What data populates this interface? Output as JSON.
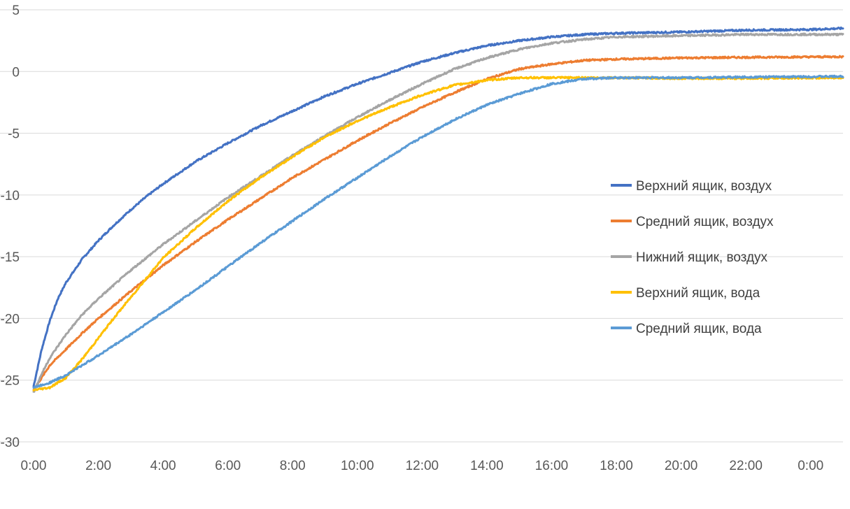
{
  "chart_data": {
    "type": "line",
    "title": "",
    "xlabel": "",
    "ylabel": "",
    "xlim": [
      0,
      25
    ],
    "ylim": [
      -30,
      5
    ],
    "y_ticks": [
      5,
      0,
      -5,
      -10,
      -15,
      -20,
      -25,
      -30
    ],
    "x_ticks": [
      {
        "v": 0,
        "label": "0:00"
      },
      {
        "v": 2,
        "label": "2:00"
      },
      {
        "v": 4,
        "label": "4:00"
      },
      {
        "v": 6,
        "label": "6:00"
      },
      {
        "v": 8,
        "label": "8:00"
      },
      {
        "v": 10,
        "label": "10:00"
      },
      {
        "v": 12,
        "label": "12:00"
      },
      {
        "v": 14,
        "label": "14:00"
      },
      {
        "v": 16,
        "label": "16:00"
      },
      {
        "v": 18,
        "label": "18:00"
      },
      {
        "v": 20,
        "label": "20:00"
      },
      {
        "v": 22,
        "label": "22:00"
      },
      {
        "v": 24,
        "label": "0:00"
      }
    ],
    "grid": "horizontal",
    "legend_position": "right",
    "series": [
      {
        "name": "Верхний ящик, воздух",
        "color": "#4472c4",
        "points": [
          [
            0,
            -25.5
          ],
          [
            0.25,
            -22.5
          ],
          [
            0.5,
            -20.2
          ],
          [
            0.75,
            -18.4
          ],
          [
            1,
            -17.1
          ],
          [
            1.5,
            -15.2
          ],
          [
            2,
            -13.7
          ],
          [
            2.5,
            -12.4
          ],
          [
            3,
            -11.2
          ],
          [
            3.5,
            -10.1
          ],
          [
            4,
            -9.1
          ],
          [
            5,
            -7.3
          ],
          [
            6,
            -5.8
          ],
          [
            7,
            -4.4
          ],
          [
            8,
            -3.2
          ],
          [
            9,
            -2.0
          ],
          [
            10,
            -1.0
          ],
          [
            11,
            -0.1
          ],
          [
            12,
            0.8
          ],
          [
            13,
            1.5
          ],
          [
            14,
            2.1
          ],
          [
            15,
            2.5
          ],
          [
            16,
            2.8
          ],
          [
            17,
            3.0
          ],
          [
            18,
            3.1
          ],
          [
            20,
            3.2
          ],
          [
            22,
            3.35
          ],
          [
            24,
            3.4
          ],
          [
            25,
            3.5
          ]
        ]
      },
      {
        "name": "Средний ящик, воздух",
        "color": "#ed7d31",
        "points": [
          [
            0,
            -25.8
          ],
          [
            0.5,
            -23.8
          ],
          [
            1,
            -22.5
          ],
          [
            1.5,
            -21.2
          ],
          [
            2,
            -20.0
          ],
          [
            3,
            -17.8
          ],
          [
            4,
            -15.7
          ],
          [
            5,
            -13.8
          ],
          [
            6,
            -12.0
          ],
          [
            7,
            -10.3
          ],
          [
            8,
            -8.6
          ],
          [
            9,
            -7.1
          ],
          [
            10,
            -5.6
          ],
          [
            11,
            -4.2
          ],
          [
            12,
            -2.9
          ],
          [
            13,
            -1.7
          ],
          [
            14,
            -0.6
          ],
          [
            15,
            0.2
          ],
          [
            16,
            0.6
          ],
          [
            17,
            0.9
          ],
          [
            18,
            1.0
          ],
          [
            20,
            1.1
          ],
          [
            22,
            1.15
          ],
          [
            25,
            1.2
          ]
        ]
      },
      {
        "name": "Нижний ящик, воздух",
        "color": "#a5a5a5",
        "points": [
          [
            0,
            -26.0
          ],
          [
            0.25,
            -24.5
          ],
          [
            0.5,
            -23.2
          ],
          [
            1,
            -21.3
          ],
          [
            1.5,
            -19.7
          ],
          [
            2,
            -18.4
          ],
          [
            3,
            -16.1
          ],
          [
            4,
            -14.0
          ],
          [
            5,
            -12.1
          ],
          [
            6,
            -10.2
          ],
          [
            7,
            -8.5
          ],
          [
            8,
            -6.8
          ],
          [
            9,
            -5.2
          ],
          [
            10,
            -3.7
          ],
          [
            11,
            -2.3
          ],
          [
            12,
            -1.0
          ],
          [
            13,
            0.2
          ],
          [
            14,
            1.1
          ],
          [
            15,
            1.8
          ],
          [
            16,
            2.3
          ],
          [
            17,
            2.6
          ],
          [
            18,
            2.8
          ],
          [
            20,
            2.9
          ],
          [
            22,
            3.0
          ],
          [
            25,
            3.0
          ]
        ]
      },
      {
        "name": "Верхний ящик, вода",
        "color": "#ffc000",
        "points": [
          [
            0,
            -25.8
          ],
          [
            0.5,
            -25.6
          ],
          [
            1,
            -24.8
          ],
          [
            1.5,
            -23.3
          ],
          [
            2,
            -21.6
          ],
          [
            2.5,
            -19.9
          ],
          [
            3,
            -18.3
          ],
          [
            3.5,
            -16.7
          ],
          [
            4,
            -15.1
          ],
          [
            5,
            -12.7
          ],
          [
            6,
            -10.5
          ],
          [
            7,
            -8.6
          ],
          [
            8,
            -6.9
          ],
          [
            9,
            -5.3
          ],
          [
            10,
            -4.0
          ],
          [
            11,
            -2.9
          ],
          [
            12,
            -1.9
          ],
          [
            13,
            -1.1
          ],
          [
            14,
            -0.7
          ],
          [
            15,
            -0.5
          ],
          [
            16,
            -0.5
          ],
          [
            17,
            -0.5
          ],
          [
            18,
            -0.5
          ],
          [
            20,
            -0.55
          ],
          [
            22,
            -0.55
          ],
          [
            25,
            -0.5
          ]
        ]
      },
      {
        "name": "Средний ящик, вода",
        "color": "#5b9bd5",
        "points": [
          [
            0,
            -25.6
          ],
          [
            0.5,
            -25.2
          ],
          [
            1,
            -24.6
          ],
          [
            2,
            -23.0
          ],
          [
            3,
            -21.3
          ],
          [
            4,
            -19.5
          ],
          [
            5,
            -17.7
          ],
          [
            6,
            -15.8
          ],
          [
            7,
            -13.9
          ],
          [
            8,
            -12.1
          ],
          [
            9,
            -10.3
          ],
          [
            10,
            -8.6
          ],
          [
            11,
            -6.9
          ],
          [
            12,
            -5.3
          ],
          [
            13,
            -3.9
          ],
          [
            14,
            -2.7
          ],
          [
            15,
            -1.8
          ],
          [
            16,
            -1.0
          ],
          [
            17,
            -0.6
          ],
          [
            18,
            -0.5
          ],
          [
            20,
            -0.5
          ],
          [
            22,
            -0.45
          ],
          [
            25,
            -0.4
          ]
        ]
      }
    ]
  }
}
